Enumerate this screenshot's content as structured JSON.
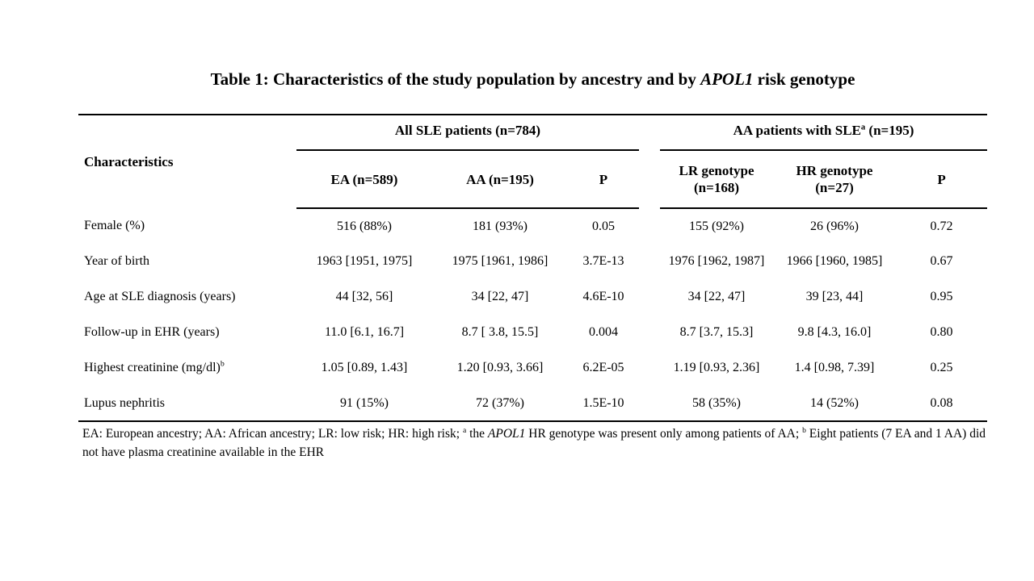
{
  "title": {
    "pre": "Table 1: Characteristics of the study population by ancestry and by ",
    "italic": "APOL1",
    "post": " risk genotype"
  },
  "table": {
    "char_header": "Characteristics",
    "groups": [
      {
        "label": "All SLE patients (n=784)"
      },
      {
        "label_pre": "AA patients with SLE",
        "label_sup": "a",
        "label_post": " (n=195)"
      }
    ],
    "columns": {
      "ea": "EA (n=589)",
      "aa": "AA (n=195)",
      "p1": "P",
      "lr": "LR genotype\n(n=168)",
      "hr": "HR genotype\n(n=27)",
      "p2": "P"
    },
    "rows": [
      {
        "label": "Female (%)",
        "ea": "516 (88%)",
        "aa": "181 (93%)",
        "p1": "0.05",
        "lr": "155 (92%)",
        "hr": "26 (96%)",
        "p2": "0.72"
      },
      {
        "label": "Year of birth",
        "ea": "1963 [1951, 1975]",
        "aa": "1975 [1961, 1986]",
        "p1": "3.7E-13",
        "lr": "1976 [1962, 1987]",
        "hr": "1966 [1960, 1985]",
        "p2": "0.67"
      },
      {
        "label": "Age at SLE diagnosis (years)",
        "ea": "44 [32, 56]",
        "aa": "34 [22, 47]",
        "p1": "4.6E-10",
        "lr": "34 [22, 47]",
        "hr": "39 [23, 44]",
        "p2": "0.95"
      },
      {
        "label": "Follow-up in EHR (years)",
        "ea": "11.0 [6.1, 16.7]",
        "aa": "8.7 [ 3.8, 15.5]",
        "p1": "0.004",
        "lr": "8.7 [3.7, 15.3]",
        "hr": "9.8 [4.3, 16.0]",
        "p2": "0.80"
      },
      {
        "label": "Highest creatinine (mg/dl)",
        "label_sup": "b",
        "ea": "1.05 [0.89, 1.43]",
        "aa": "1.20 [0.93, 3.66]",
        "p1": "6.2E-05",
        "lr": "1.19 [0.93, 2.36]",
        "hr": "1.4 [0.98, 7.39]",
        "p2": "0.25"
      },
      {
        "label": "Lupus nephritis",
        "ea": "91 (15%)",
        "aa": "72 (37%)",
        "p1": "1.5E-10",
        "lr": "58 (35%)",
        "hr": "14 (52%)",
        "p2": "0.08"
      }
    ]
  },
  "footnote": {
    "p1": "EA: European ancestry; AA: African ancestry; LR: low risk; HR: high risk; ",
    "sup_a": "a",
    "p2": " the ",
    "italic": "APOL1",
    "p3": " HR genotype was present only among patients of AA; ",
    "sup_b": "b",
    "p4": " Eight patients (7 EA and 1 AA) did not have plasma creatinine available in the EHR"
  },
  "colors": {
    "text": "#000000",
    "background": "#ffffff",
    "rule": "#000000"
  }
}
